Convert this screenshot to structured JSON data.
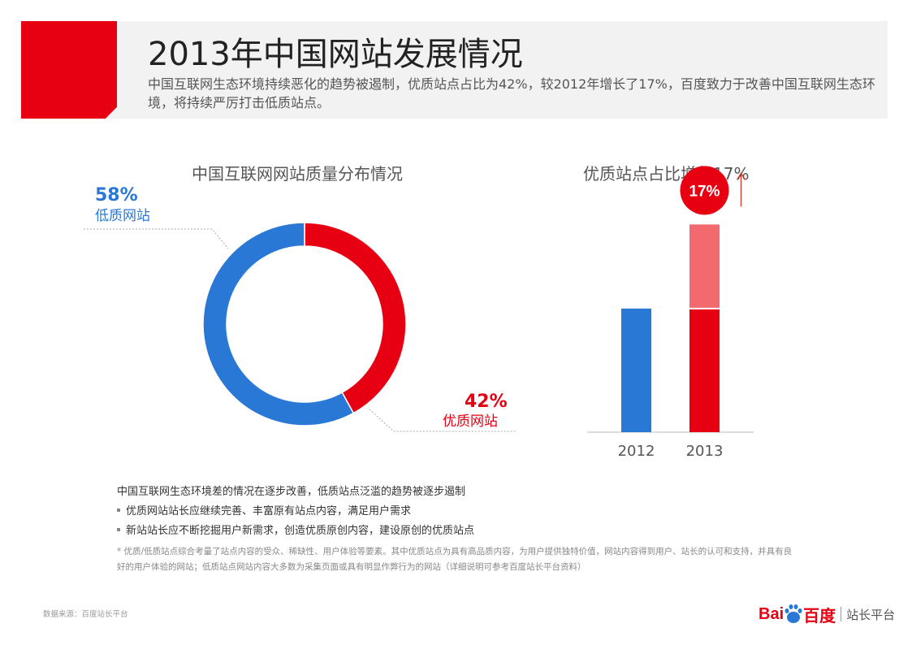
{
  "header": {
    "title": "2013年中国网站发展情况",
    "subtitle": "中国互联网生态环境持续恶化的趋势被遏制，优质站点占比为42%，较2012年增长了17%，百度致力于改善中国互联网生态环境，将持续严厉打击低质站点。"
  },
  "colors": {
    "accent_red": "#e60012",
    "blue": "#2a78d6",
    "light_red": "#f26a6e"
  },
  "chart_data": [
    {
      "type": "pie",
      "donut": true,
      "title": "中国互联网网站质量分布情况",
      "slices": [
        {
          "label": "优质网站",
          "value": 42,
          "value_text": "42%",
          "color": "#e60012"
        },
        {
          "label": "低质网站",
          "value": 58,
          "value_text": "58%",
          "color": "#2a78d6"
        }
      ]
    },
    {
      "type": "bar",
      "title": "优质站点占比增长17%",
      "categories": [
        "2012",
        "2013"
      ],
      "series": [
        {
          "values": [
            25,
            25
          ],
          "colors": [
            "#2a78d6",
            "#e60012"
          ]
        },
        {
          "values": [
            0,
            17
          ],
          "color": "#f26a6e"
        }
      ],
      "annotation": "17%",
      "ylim": [
        0,
        46
      ],
      "grid": false
    }
  ],
  "notes": {
    "lead": "中国互联网生态环境差的情况在逐步改善，低质站点泛滥的趋势被逐步遏制",
    "bullets": [
      "优质网站站长应继续完善、丰富原有站点内容，满足用户需求",
      "新站站长应不断挖掘用户新需求，创造优质原创内容，建设原创的优质站点"
    ],
    "footnote": "* 优质/低质站点综合考量了站点内容的受众、稀缺性、用户体验等要素。其中优质站点为具有高品质内容，为用户提供独特价值，网站内容得到用户、站长的认可和支持，并具有良好的用户体验的网站；低质站点网站内容大多数为采集页面或具有明显作弊行为的网站（详细说明可参考百度站长平台资料）"
  },
  "footer": {
    "source": "数据来源：百度站长平台",
    "logo_bai": "Bai",
    "logo_du": "百度",
    "logo_platform": "站长平台"
  }
}
